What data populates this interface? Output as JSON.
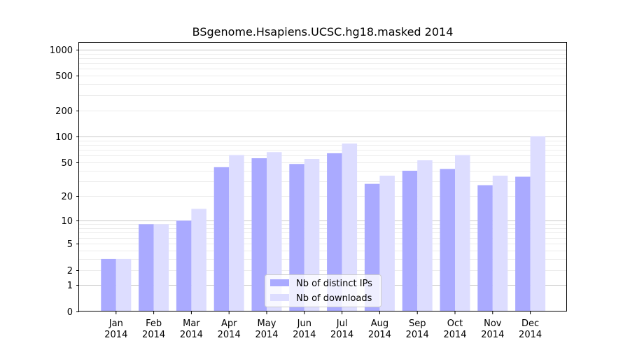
{
  "chart_data": {
    "type": "bar",
    "title": "BSgenome.Hsapiens.UCSC.hg18.masked 2014",
    "xlabel": "",
    "ylabel": "",
    "y_scale": "log(1+y)",
    "ylim": [
      0,
      1200
    ],
    "y_ticks": [
      0,
      1,
      2,
      5,
      10,
      20,
      50,
      100,
      200,
      500,
      1000
    ],
    "grid": true,
    "legend_position": "lower center",
    "categories": [
      [
        "Jan",
        "2014"
      ],
      [
        "Feb",
        "2014"
      ],
      [
        "Mar",
        "2014"
      ],
      [
        "Apr",
        "2014"
      ],
      [
        "May",
        "2014"
      ],
      [
        "Jun",
        "2014"
      ],
      [
        "Jul",
        "2014"
      ],
      [
        "Aug",
        "2014"
      ],
      [
        "Sep",
        "2014"
      ],
      [
        "Oct",
        "2014"
      ],
      [
        "Nov",
        "2014"
      ],
      [
        "Dec",
        "2014"
      ]
    ],
    "series": [
      {
        "name": "Nb of distinct IPs",
        "color": "#aaaaff",
        "values": [
          3,
          9,
          10,
          44,
          56,
          48,
          64,
          28,
          40,
          42,
          27,
          34
        ]
      },
      {
        "name": "Nb of downloads",
        "color": "#ddddff",
        "values": [
          3,
          9,
          14,
          61,
          66,
          55,
          83,
          35,
          53,
          61,
          35,
          101
        ]
      }
    ]
  }
}
